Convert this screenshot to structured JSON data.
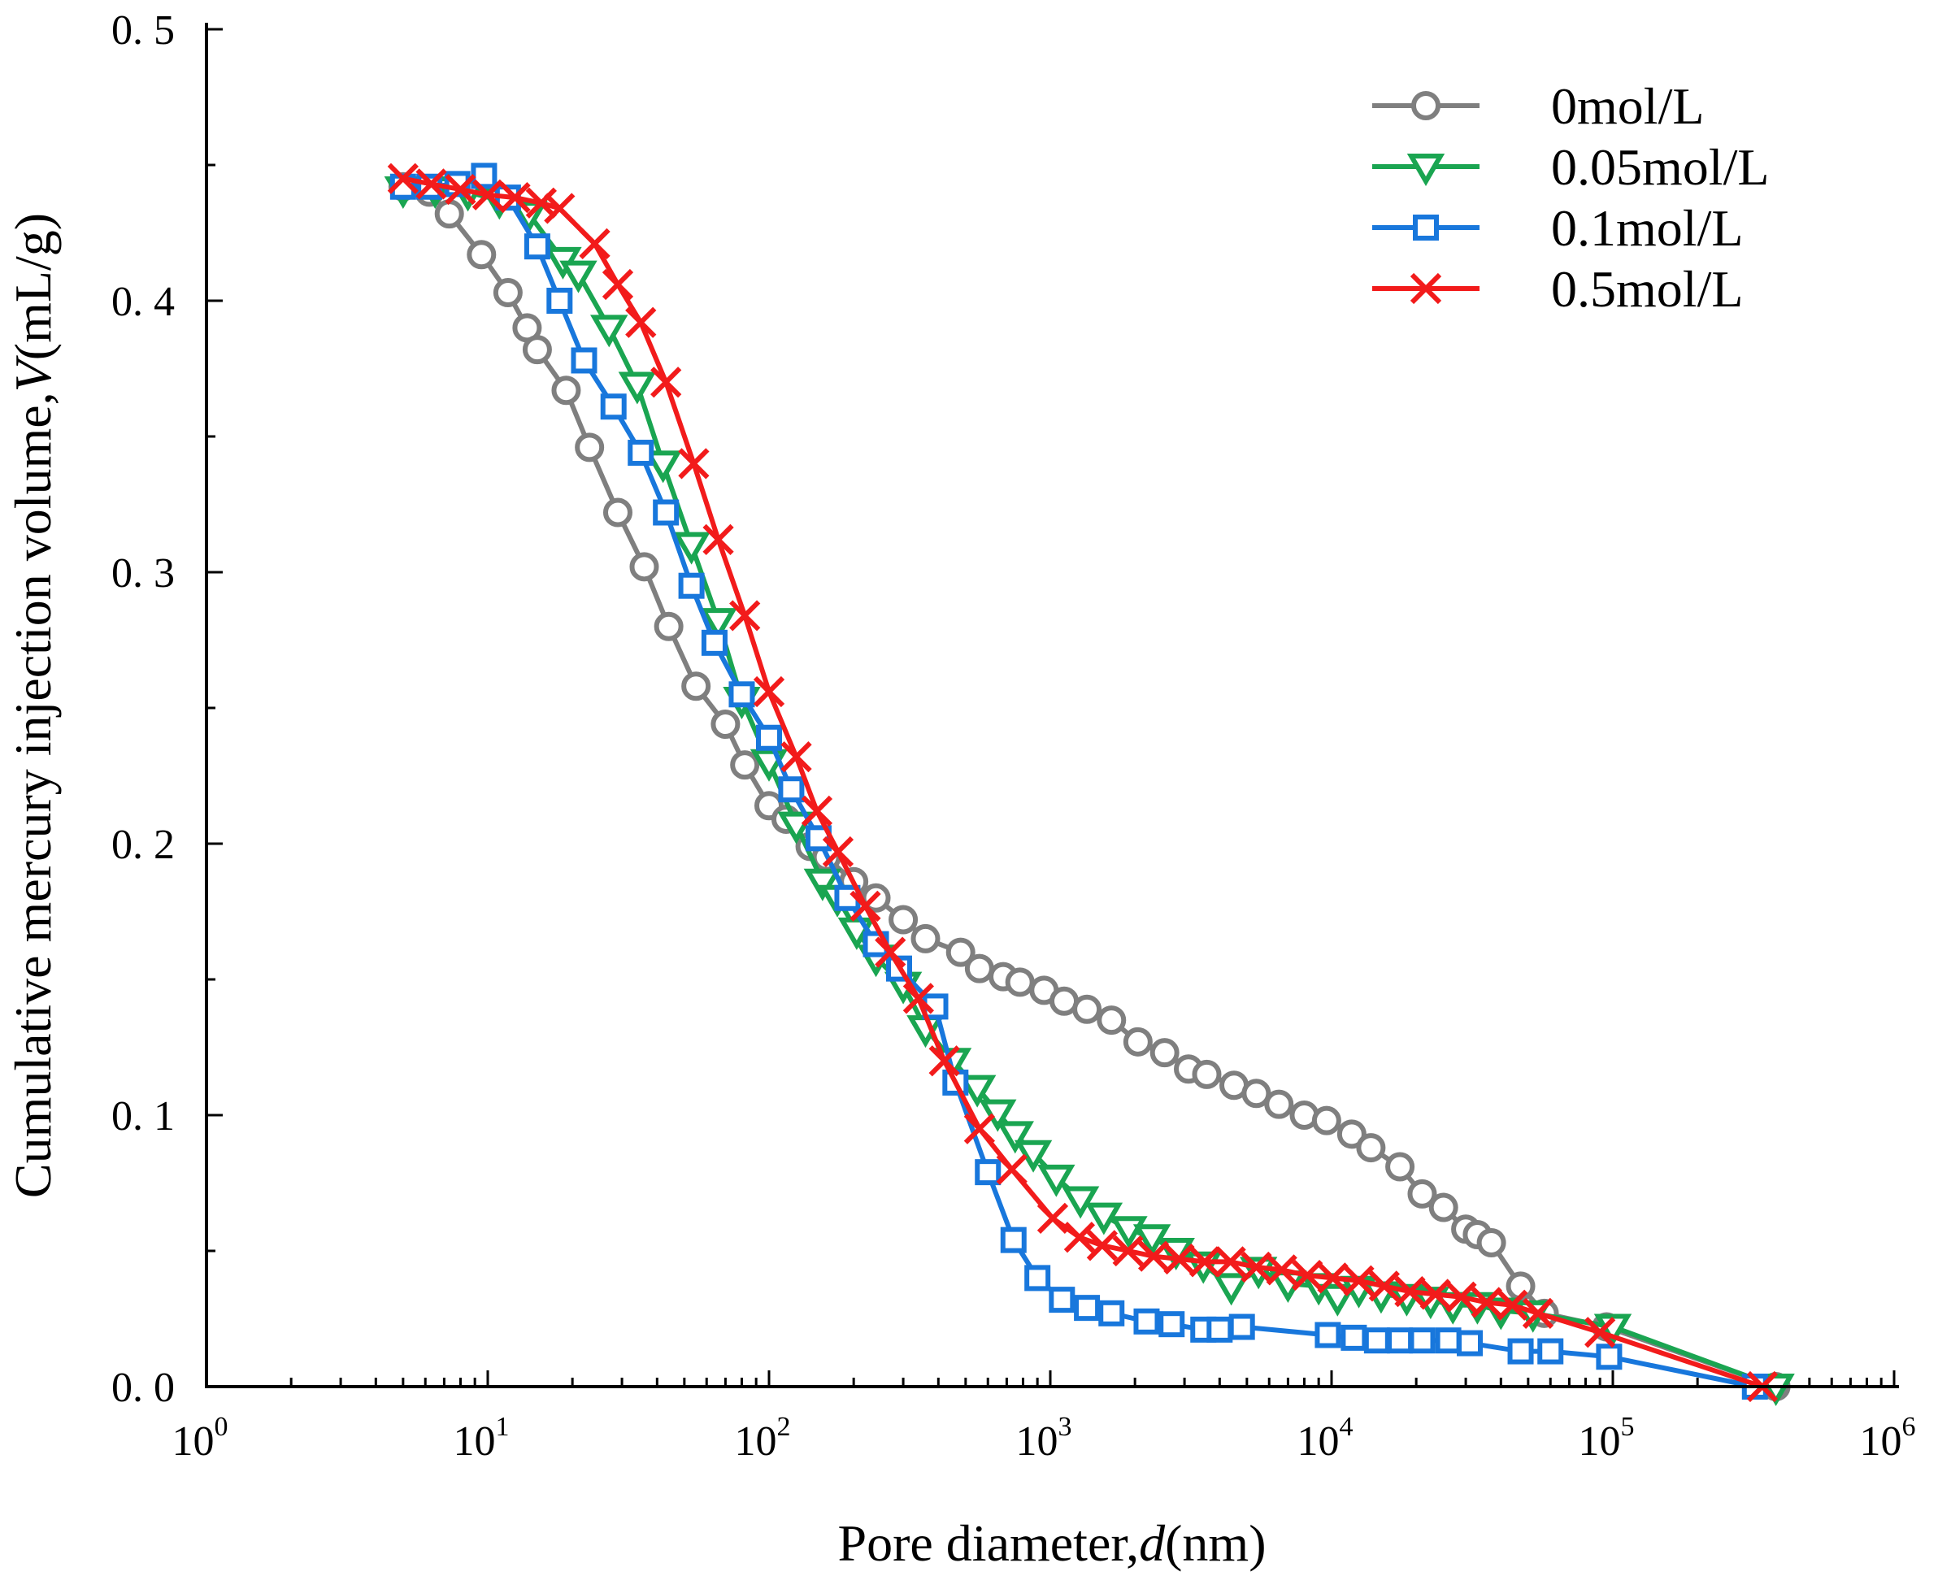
{
  "chart_data": {
    "type": "line",
    "xscale": "log",
    "xlim": [
      1,
      1000000
    ],
    "ylim": [
      0,
      0.5
    ],
    "xlabel": {
      "prefix": "Pore diameter,",
      "var": "d",
      "suffix": "(nm)"
    },
    "ylabel": {
      "prefix": "Cumulative mercury injection volume,",
      "var": "V",
      "suffix": "(mL/g)"
    },
    "x_ticks": [
      {
        "value": 1,
        "base": "10",
        "exp": "0"
      },
      {
        "value": 10,
        "base": "10",
        "exp": "1"
      },
      {
        "value": 100,
        "base": "10",
        "exp": "2"
      },
      {
        "value": 1000,
        "base": "10",
        "exp": "3"
      },
      {
        "value": 10000,
        "base": "10",
        "exp": "4"
      },
      {
        "value": 100000,
        "base": "10",
        "exp": "5"
      },
      {
        "value": 1000000,
        "base": "10",
        "exp": "6"
      }
    ],
    "y_ticks": [
      {
        "value": 0.0,
        "label": "0. 0"
      },
      {
        "value": 0.1,
        "label": "0. 1"
      },
      {
        "value": 0.2,
        "label": "0. 2"
      },
      {
        "value": 0.3,
        "label": "0. 3"
      },
      {
        "value": 0.4,
        "label": "0. 4"
      },
      {
        "value": 0.5,
        "label": "0. 5"
      }
    ],
    "legend_position": "top-right",
    "series": [
      {
        "name": "0mol/L",
        "color": "#7f7f7f",
        "marker": "circle",
        "x": [
          5,
          6.2,
          7.3,
          9.5,
          11.8,
          13.8,
          15,
          19,
          23,
          29,
          36,
          44,
          55,
          70,
          82,
          100,
          115,
          140,
          160,
          200,
          240,
          300,
          360,
          480,
          560,
          680,
          780,
          950,
          1120,
          1350,
          1650,
          2050,
          2550,
          3100,
          3600,
          4500,
          5400,
          6500,
          8000,
          9600,
          11800,
          13800,
          17500,
          21000,
          25000,
          30000,
          33000,
          37000,
          47000,
          57000,
          95000,
          380000
        ],
        "y": [
          0.442,
          0.44,
          0.432,
          0.417,
          0.403,
          0.39,
          0.382,
          0.367,
          0.346,
          0.322,
          0.302,
          0.28,
          0.258,
          0.244,
          0.229,
          0.214,
          0.209,
          0.199,
          0.195,
          0.186,
          0.18,
          0.172,
          0.165,
          0.16,
          0.154,
          0.151,
          0.149,
          0.146,
          0.142,
          0.139,
          0.135,
          0.127,
          0.123,
          0.117,
          0.115,
          0.111,
          0.108,
          0.104,
          0.1,
          0.098,
          0.093,
          0.088,
          0.081,
          0.071,
          0.066,
          0.058,
          0.056,
          0.053,
          0.037,
          0.027,
          0.022,
          0.0
        ]
      },
      {
        "name": "0.05mol/L",
        "color": "#1aa551",
        "marker": "triangle-down",
        "x": [
          5,
          6.5,
          8.5,
          11,
          14,
          18.5,
          21,
          27,
          34,
          42,
          53,
          66,
          80,
          100,
          125,
          155,
          175,
          205,
          240,
          300,
          360,
          450,
          550,
          650,
          750,
          870,
          1050,
          1280,
          1550,
          1900,
          2300,
          2800,
          3500,
          4400,
          5500,
          7000,
          9000,
          10500,
          12500,
          15000,
          18500,
          22500,
          27000,
          33000,
          40000,
          52000,
          100000,
          380000
        ],
        "y": [
          0.441,
          0.441,
          0.44,
          0.437,
          0.432,
          0.415,
          0.41,
          0.39,
          0.369,
          0.34,
          0.31,
          0.282,
          0.253,
          0.23,
          0.207,
          0.186,
          0.18,
          0.168,
          0.158,
          0.148,
          0.132,
          0.12,
          0.11,
          0.101,
          0.093,
          0.086,
          0.077,
          0.069,
          0.063,
          0.058,
          0.055,
          0.05,
          0.045,
          0.037,
          0.043,
          0.038,
          0.037,
          0.033,
          0.036,
          0.034,
          0.033,
          0.032,
          0.03,
          0.03,
          0.028,
          0.027,
          0.022,
          0.0
        ]
      },
      {
        "name": "0.1mol/L",
        "color": "#1877dc",
        "marker": "square",
        "x": [
          5,
          6.2,
          7.8,
          9.7,
          11.8,
          15,
          18,
          22,
          28,
          35,
          43,
          53,
          64,
          80,
          100,
          120,
          150,
          190,
          240,
          290,
          390,
          460,
          600,
          740,
          900,
          1100,
          1350,
          1650,
          2200,
          2700,
          3500,
          4000,
          4800,
          9700,
          12000,
          14500,
          17500,
          21000,
          26000,
          31000,
          47000,
          60000,
          97000,
          320000
        ],
        "y": [
          0.442,
          0.442,
          0.443,
          0.446,
          0.438,
          0.42,
          0.4,
          0.378,
          0.361,
          0.344,
          0.322,
          0.295,
          0.274,
          0.255,
          0.239,
          0.22,
          0.202,
          0.18,
          0.163,
          0.154,
          0.14,
          0.112,
          0.079,
          0.054,
          0.04,
          0.032,
          0.029,
          0.027,
          0.024,
          0.023,
          0.021,
          0.021,
          0.022,
          0.019,
          0.018,
          0.017,
          0.017,
          0.017,
          0.017,
          0.016,
          0.013,
          0.013,
          0.011,
          0.0
        ]
      },
      {
        "name": "0.5mol/L",
        "color": "#f21b1b",
        "marker": "x",
        "x": [
          5,
          6.3,
          8,
          10,
          12.5,
          15.5,
          18,
          24,
          29,
          35,
          43,
          54,
          66,
          82,
          100,
          125,
          148,
          176,
          220,
          270,
          340,
          420,
          560,
          730,
          1020,
          1270,
          1530,
          1890,
          2330,
          2870,
          3540,
          4370,
          5400,
          6650,
          8200,
          10100,
          12500,
          15400,
          19000,
          23400,
          28900,
          35600,
          43900,
          54200,
          90000,
          340000
        ],
        "y": [
          0.445,
          0.443,
          0.441,
          0.439,
          0.438,
          0.436,
          0.434,
          0.421,
          0.406,
          0.392,
          0.37,
          0.34,
          0.312,
          0.284,
          0.256,
          0.232,
          0.212,
          0.197,
          0.177,
          0.16,
          0.143,
          0.12,
          0.095,
          0.08,
          0.062,
          0.055,
          0.052,
          0.05,
          0.048,
          0.047,
          0.046,
          0.046,
          0.044,
          0.043,
          0.041,
          0.04,
          0.039,
          0.037,
          0.035,
          0.034,
          0.033,
          0.031,
          0.03,
          0.027,
          0.02,
          0.0
        ]
      }
    ]
  }
}
